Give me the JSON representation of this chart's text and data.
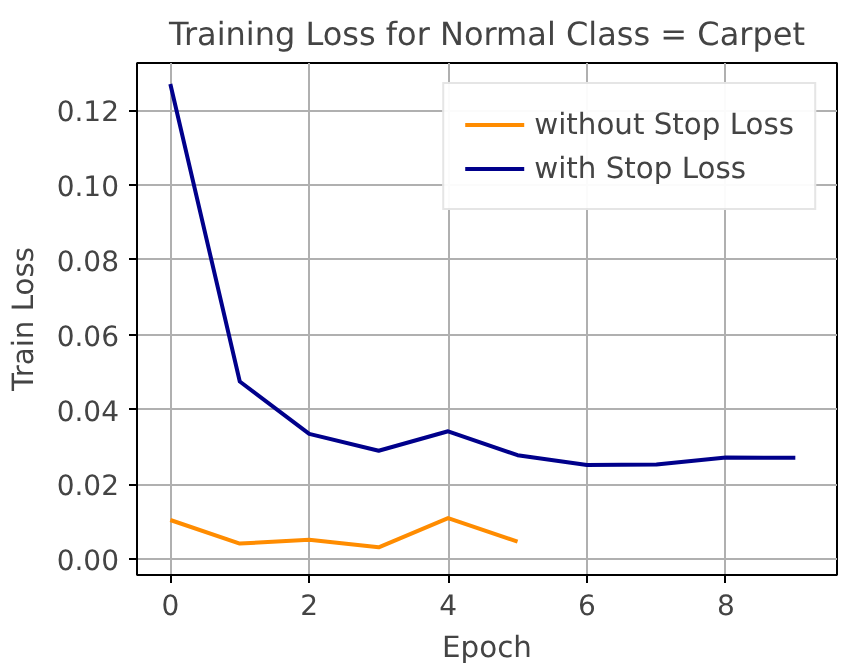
{
  "chart_data": {
    "type": "line",
    "title": "Training Loss for Normal Class = Carpet",
    "xlabel": "Epoch",
    "ylabel": "Train Loss",
    "x": [
      0,
      1,
      2,
      3,
      4,
      5,
      6,
      7,
      8,
      9
    ],
    "series": [
      {
        "name": "without Stop Loss",
        "color": "#ff8c00",
        "values": [
          0.0105,
          0.0042,
          0.0052,
          0.0032,
          0.011,
          0.0047,
          null,
          null,
          null,
          null
        ]
      },
      {
        "name": "with Stop Loss",
        "color": "#00008b",
        "values": [
          0.127,
          0.0475,
          0.0335,
          0.029,
          0.0342,
          0.0278,
          0.0252,
          0.0253,
          0.0272,
          0.0271
        ]
      }
    ],
    "xlim": [
      -0.48,
      9.6
    ],
    "ylim": [
      -0.0042,
      0.1326
    ],
    "xticks": [
      0,
      2,
      4,
      6,
      8
    ],
    "yticks": [
      {
        "value": 0,
        "label": "0.00"
      },
      {
        "value": 0.02,
        "label": "0.02"
      },
      {
        "value": 0.04,
        "label": "0.04"
      },
      {
        "value": 0.06,
        "label": "0.06"
      },
      {
        "value": 0.08,
        "label": "0.08"
      },
      {
        "value": 0.1,
        "label": "0.10"
      },
      {
        "value": 0.12,
        "label": "0.12"
      }
    ],
    "grid": true,
    "legend": "top right",
    "line_style": "solid"
  }
}
